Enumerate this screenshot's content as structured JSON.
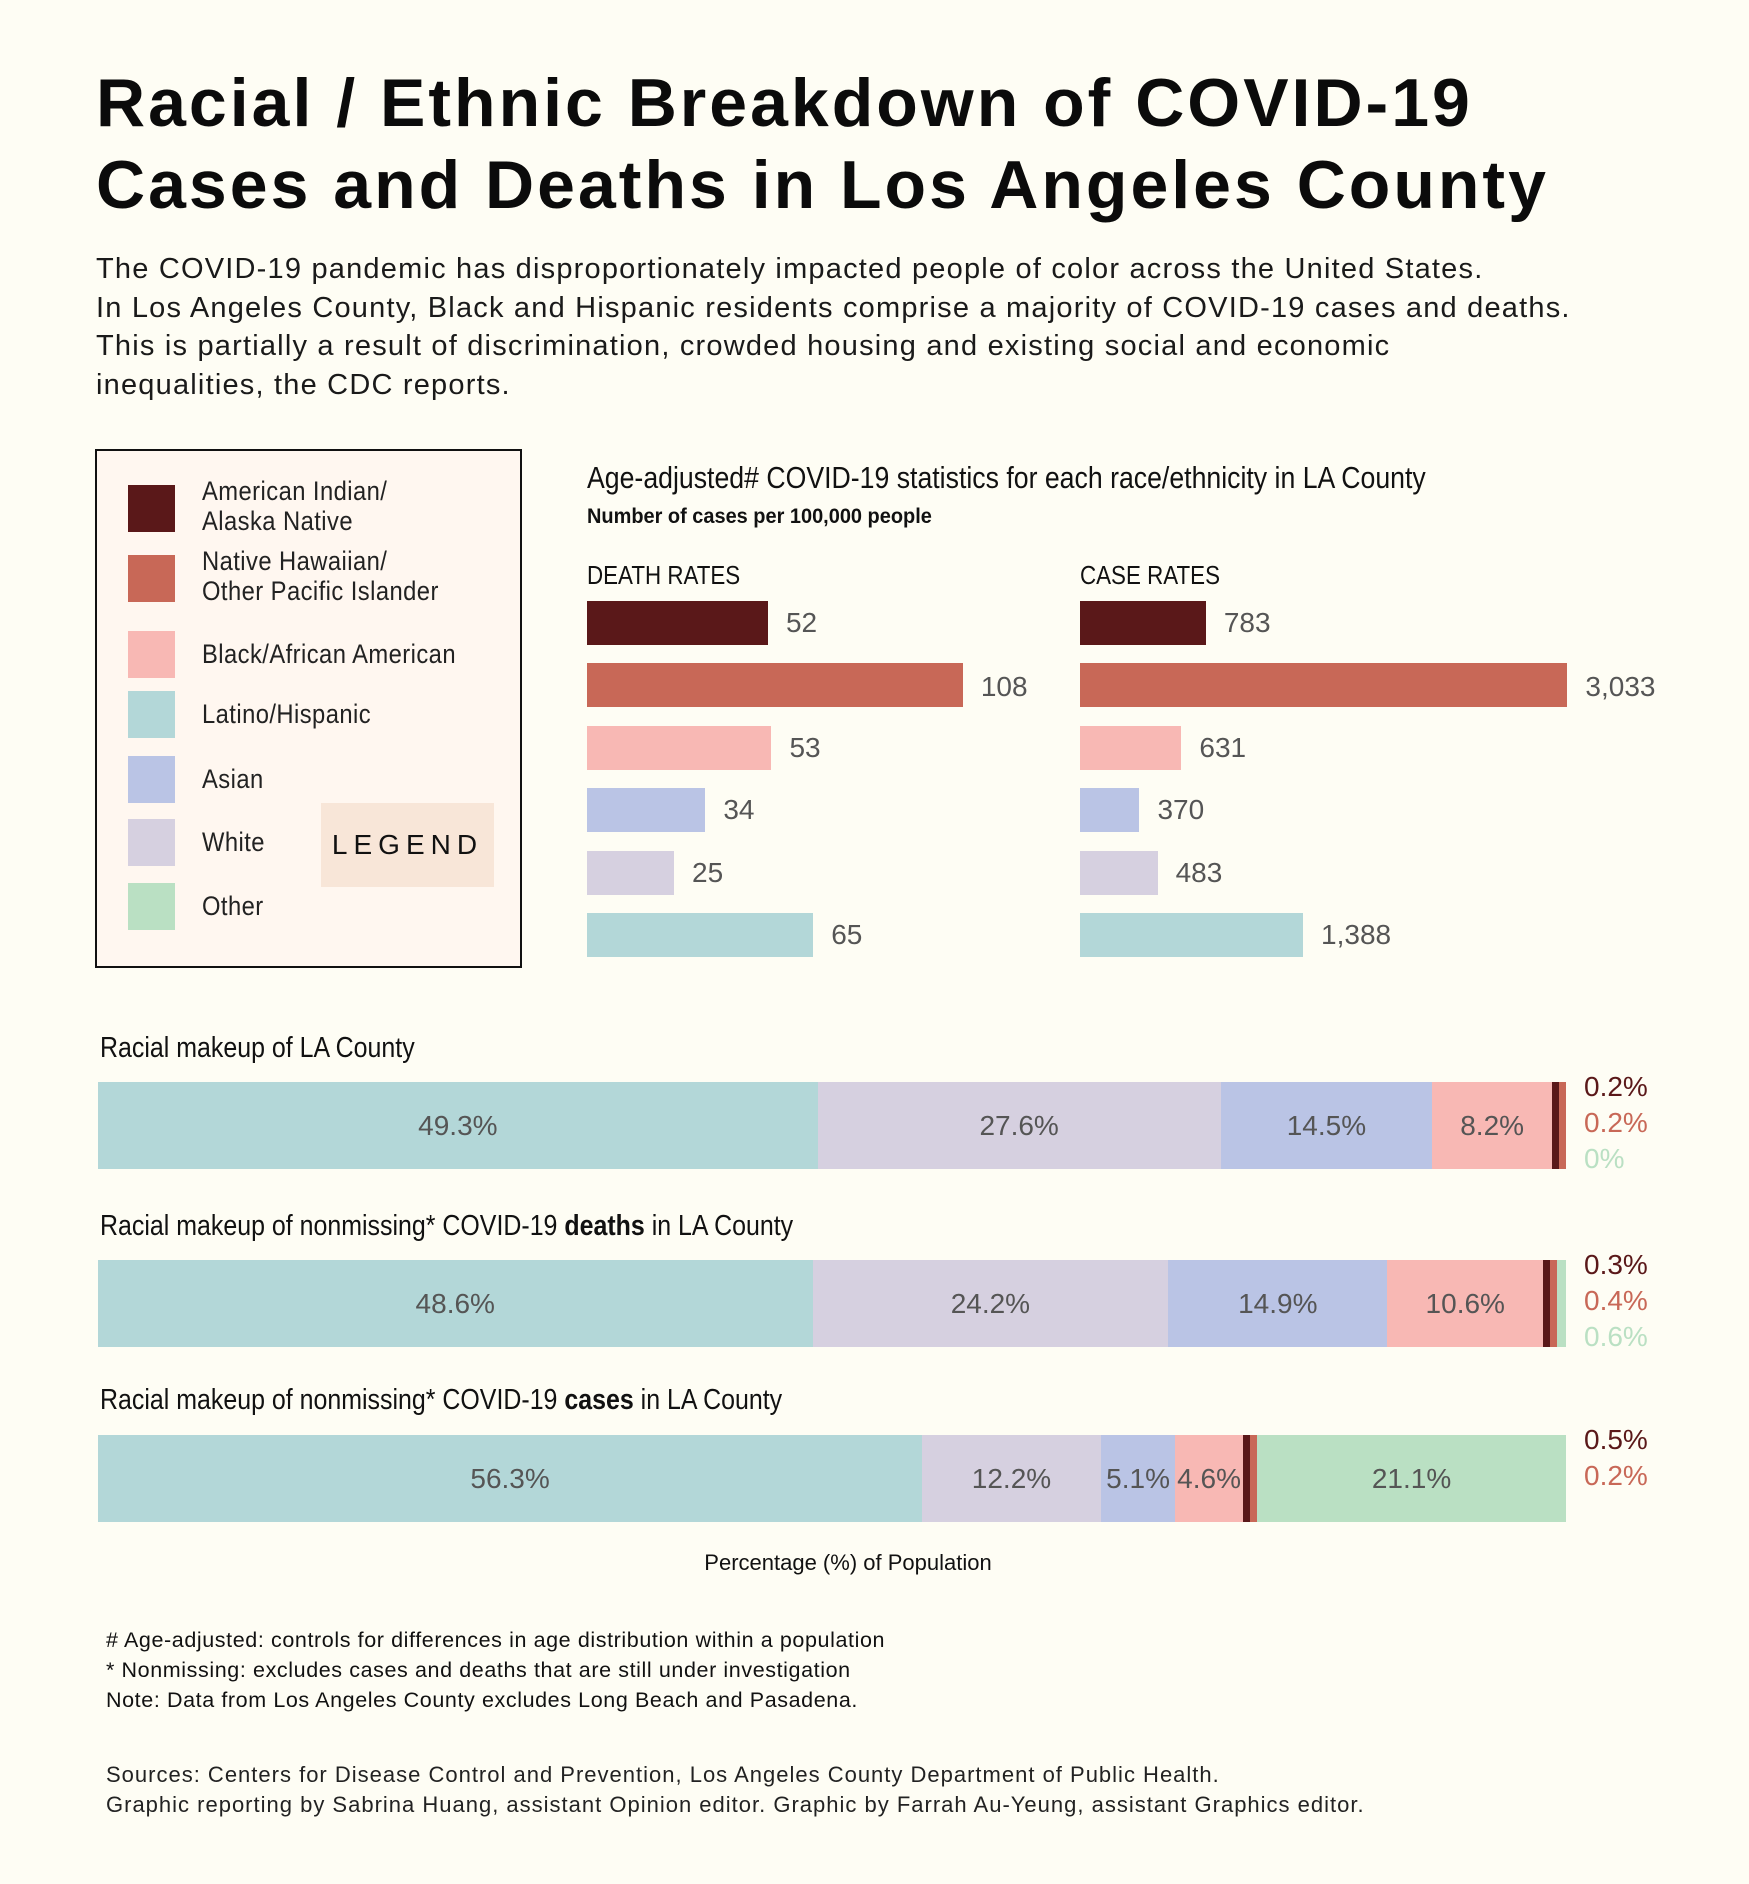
{
  "title": [
    "Racial / Ethnic Breakdown of COVID-19",
    "Cases and Deaths in Los Angeles County"
  ],
  "intro": [
    "The COVID-19 pandemic has disproportionately impacted people of color across the United States.",
    "In Los Angeles County, Black and Hispanic residents comprise a majority of COVID-19 cases and deaths.",
    "This is partially a result of discrimination, crowded housing and existing social and economic",
    "inequalities, the CDC reports."
  ],
  "colors": {
    "ai": "#5a1819",
    "nh": "#c86857",
    "black": "#f8b8b4",
    "latino": "#b3d7d8",
    "asian": "#bac4e5",
    "white": "#d6d0e0",
    "other": "#bae0c3"
  },
  "legend": {
    "tag": "LEGEND",
    "items": [
      {
        "key": "ai",
        "label": [
          "American Indian/",
          "Alaska Native"
        ]
      },
      {
        "key": "nh",
        "label": [
          "Native Hawaiian/",
          "Other Pacific Islander"
        ]
      },
      {
        "key": "black",
        "label": [
          "Black/African American"
        ]
      },
      {
        "key": "latino",
        "label": [
          "Latino/Hispanic"
        ]
      },
      {
        "key": "asian",
        "label": [
          "Asian"
        ]
      },
      {
        "key": "white",
        "label": [
          "White"
        ]
      },
      {
        "key": "other",
        "label": [
          "Other"
        ]
      }
    ]
  },
  "chart_data": [
    {
      "type": "bar",
      "orientation": "horizontal",
      "title": "Age-adjusted# COVID-19 statistics for each race/ethnicity in LA County",
      "subtitle": "Number of cases per 100,000 people",
      "panel": "DEATH RATES",
      "categories": [
        "ai",
        "nh",
        "black",
        "asian",
        "white",
        "latino"
      ],
      "values": [
        52,
        108,
        53,
        34,
        25,
        65
      ],
      "labels": [
        "52",
        "108",
        "53",
        "34",
        "25",
        "65"
      ]
    },
    {
      "type": "bar",
      "orientation": "horizontal",
      "panel": "CASE RATES",
      "categories": [
        "ai",
        "nh",
        "black",
        "asian",
        "white",
        "latino"
      ],
      "values": [
        783,
        3033,
        631,
        370,
        483,
        1388
      ],
      "labels": [
        "783",
        "3,033",
        "631",
        "370",
        "483",
        "1,388"
      ]
    },
    {
      "type": "bar",
      "stacked": true,
      "title": "Racial makeup of LA County",
      "xlabel": "Percentage (%) of Population",
      "xlim": [
        0,
        100
      ],
      "segments": [
        {
          "key": "latino",
          "value": 49.3
        },
        {
          "key": "white",
          "value": 27.6
        },
        {
          "key": "asian",
          "value": 14.5
        },
        {
          "key": "black",
          "value": 8.2
        },
        {
          "key": "ai",
          "value": 0.2
        },
        {
          "key": "nh",
          "value": 0.2
        },
        {
          "key": "other",
          "value": 0
        }
      ],
      "side_labels": [
        {
          "key": "ai",
          "text": "0.2%"
        },
        {
          "key": "nh",
          "text": "0.2%"
        },
        {
          "key": "other",
          "text": "0%"
        }
      ]
    },
    {
      "type": "bar",
      "stacked": true,
      "title_parts": [
        "Racial makeup of nonmissing* COVID-19 ",
        "deaths",
        " in LA County"
      ],
      "xlim": [
        0,
        100
      ],
      "segments": [
        {
          "key": "latino",
          "value": 48.6
        },
        {
          "key": "white",
          "value": 24.2
        },
        {
          "key": "asian",
          "value": 14.9
        },
        {
          "key": "black",
          "value": 10.6
        },
        {
          "key": "ai",
          "value": 0.3
        },
        {
          "key": "nh",
          "value": 0.4
        },
        {
          "key": "other",
          "value": 0.6
        }
      ],
      "side_labels": [
        {
          "key": "ai",
          "text": "0.3%"
        },
        {
          "key": "nh",
          "text": "0.4%"
        },
        {
          "key": "other",
          "text": "0.6%"
        }
      ]
    },
    {
      "type": "bar",
      "stacked": true,
      "title_parts": [
        "Racial makeup of nonmissing* COVID-19 ",
        "cases",
        " in LA County"
      ],
      "xlim": [
        0,
        100
      ],
      "segments": [
        {
          "key": "latino",
          "value": 56.3
        },
        {
          "key": "white",
          "value": 12.2
        },
        {
          "key": "asian",
          "value": 5.1
        },
        {
          "key": "black",
          "value": 4.6
        },
        {
          "key": "ai",
          "value": 0.5
        },
        {
          "key": "nh",
          "value": 0.2
        },
        {
          "key": "other",
          "value": 21.1
        }
      ],
      "side_labels": [
        {
          "key": "ai",
          "text": "0.5%"
        },
        {
          "key": "nh",
          "text": "0.2%"
        }
      ]
    }
  ],
  "notes": [
    "# Age-adjusted: controls for differences in age distribution within a population",
    "* Nonmissing: excludes cases and deaths that are still under investigation",
    "Note: Data from Los Angeles County excludes Long Beach and Pasadena."
  ],
  "sources": [
    "Sources: Centers for Disease Control and Prevention, Los Angeles County Department of Public Health.",
    "Graphic reporting by Sabrina Huang, assistant Opinion editor. Graphic by Farrah Au-Yeung, assistant Graphics editor."
  ]
}
